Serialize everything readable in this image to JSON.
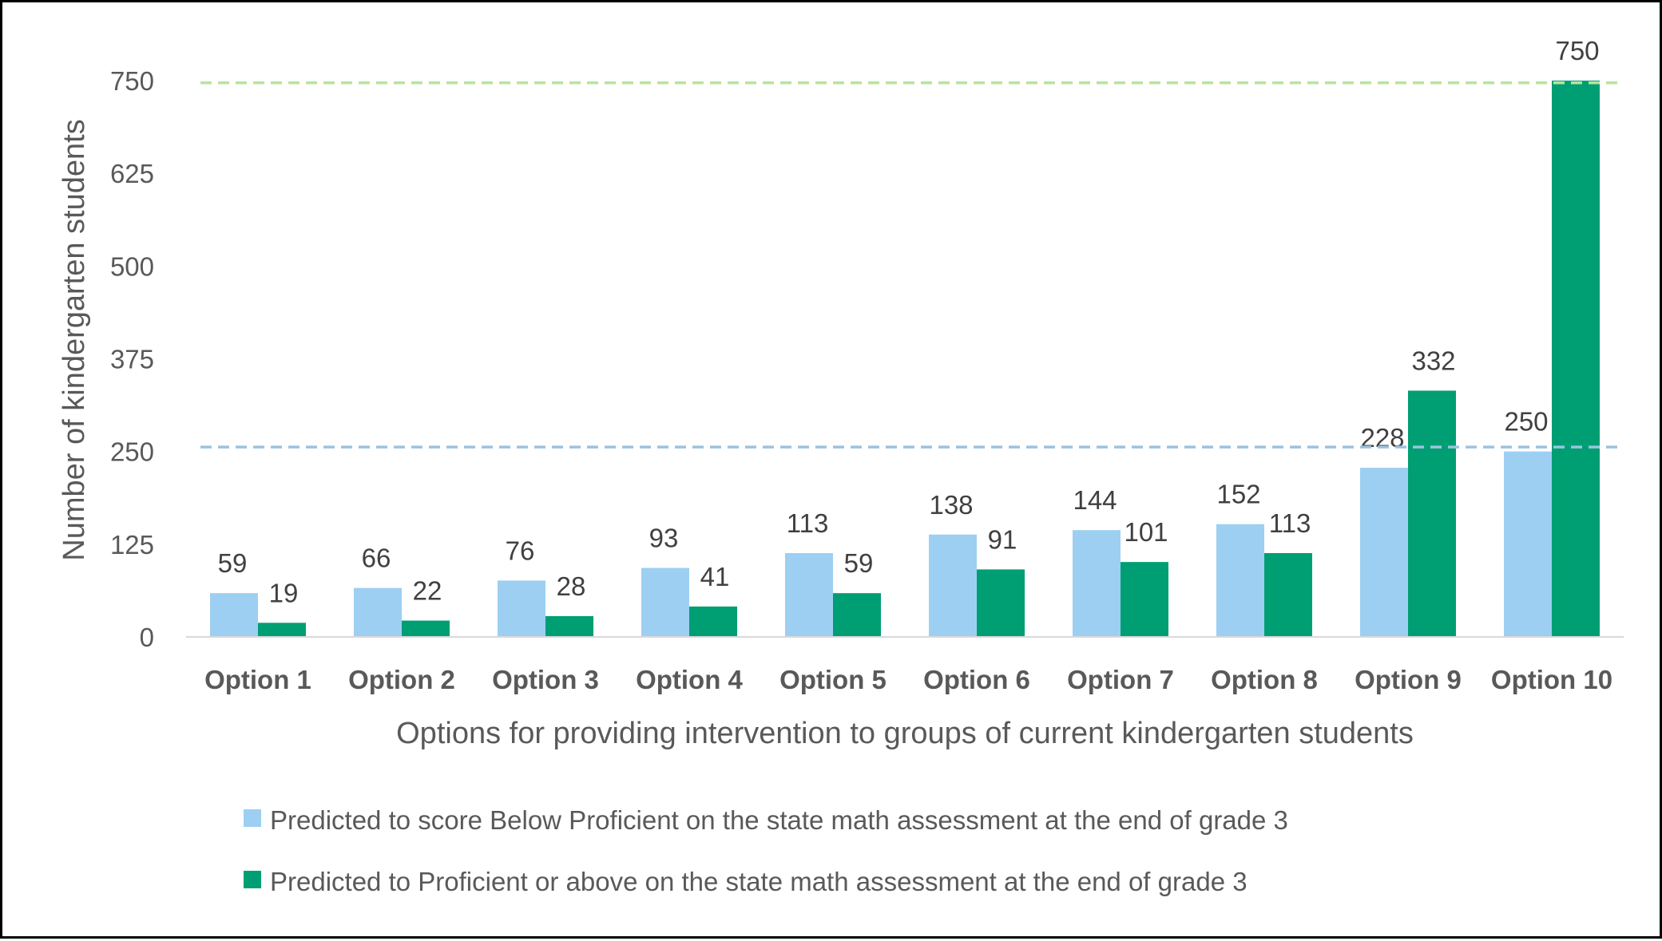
{
  "chart_data": {
    "type": "bar",
    "title": "",
    "xlabel": "Options for providing intervention to groups of current kindergarten students",
    "ylabel": "Number of kindergarten students",
    "ylim": [
      0,
      750
    ],
    "yticks": [
      "0",
      "125",
      "250",
      "375",
      "500",
      "625",
      "750"
    ],
    "categories": [
      "Option 1",
      "Option 2",
      "Option 3",
      "Option 4",
      "Option 5",
      "Option 6",
      "Option 7",
      "Option 8",
      "Option 9",
      "Option 10"
    ],
    "series": [
      {
        "name": "Predicted to score Below Proficient on the state math assessment at the end of grade 3",
        "color": "#9DCFF2",
        "values": [
          59,
          66,
          76,
          93,
          113,
          138,
          144,
          152,
          228,
          250
        ]
      },
      {
        "name": "Predicted to Proficient or above on the state math assessment at the end of grade 3",
        "color": "#009E73",
        "values": [
          19,
          22,
          28,
          41,
          59,
          91,
          101,
          113,
          332,
          750
        ]
      }
    ],
    "reference_lines": [
      {
        "value": 256,
        "color": "#9CC3DE",
        "style": "dashed"
      },
      {
        "value": 747,
        "color": "#B5E59C",
        "style": "dashed"
      }
    ],
    "grid": false,
    "legend_position": "bottom"
  }
}
